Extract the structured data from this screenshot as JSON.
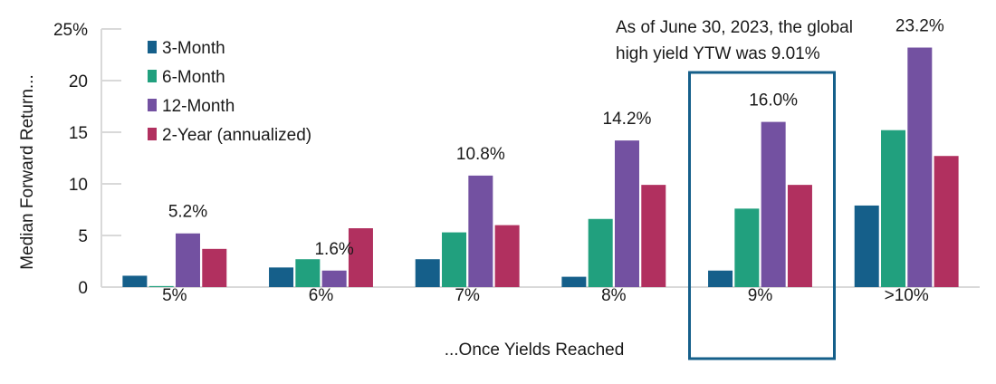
{
  "chart_data": {
    "type": "bar",
    "title": "",
    "xlabel": "...Once Yields Reached",
    "ylabel": "Median Forward Return...",
    "ylim": [
      0,
      25
    ],
    "yticks": [
      "0",
      "5",
      "10",
      "15",
      "20",
      "25%"
    ],
    "grid": false,
    "legend_position": "top-left",
    "categories": [
      "5%",
      "6%",
      "7%",
      "8%",
      "9%",
      ">10%"
    ],
    "series": [
      {
        "name": "3-Month",
        "color": "#155f8a",
        "values": [
          1.1,
          1.9,
          2.7,
          1.0,
          1.6,
          7.9
        ]
      },
      {
        "name": "6-Month",
        "color": "#21a07e",
        "values": [
          0.1,
          2.7,
          5.3,
          6.6,
          7.6,
          15.2
        ]
      },
      {
        "name": "12-Month",
        "color": "#7351a1",
        "values": [
          5.2,
          1.6,
          10.8,
          14.2,
          16.0,
          23.2
        ]
      },
      {
        "name": "2-Year (annualized)",
        "color": "#b1305f",
        "values": [
          3.7,
          5.7,
          6.0,
          9.9,
          9.9,
          12.7
        ]
      }
    ],
    "data_labels": [
      "5.2%",
      "1.6%",
      "10.8%",
      "14.2%",
      "16.0%",
      "23.2%"
    ],
    "highlight_category": "9%",
    "highlight_color": "#155f8a",
    "annotation": [
      "As of June 30, 2023, the global",
      "high yield YTW was 9.01%"
    ]
  }
}
